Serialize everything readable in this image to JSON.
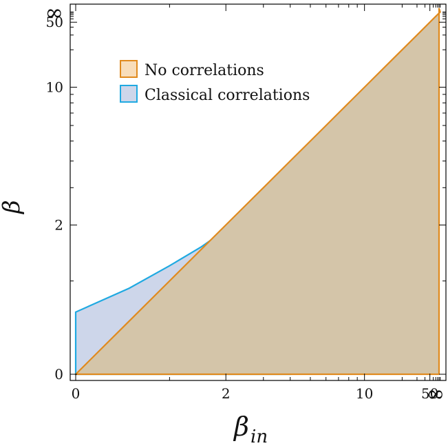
{
  "chart_data": {
    "type": "area",
    "xlabel": "β",
    "xlabel_sub": "in",
    "ylabel": "β",
    "x_ticks": [
      {
        "value": 0,
        "label": "0"
      },
      {
        "value": 2,
        "label": "2"
      },
      {
        "value": 10,
        "label": "10"
      },
      {
        "value": 50,
        "label": "50"
      },
      {
        "value": "inf",
        "label": "∞"
      }
    ],
    "y_ticks": [
      {
        "value": 0,
        "label": "0"
      },
      {
        "value": 2,
        "label": "2"
      },
      {
        "value": 10,
        "label": "10"
      },
      {
        "value": 50,
        "label": "50"
      },
      {
        "value": "inf",
        "label": "∞"
      }
    ],
    "axis_scale": "compressed (t = β/(β+3)), ∞ at end",
    "legend_position": "top-left",
    "series": [
      {
        "name": "No correlations",
        "color": "#E08A1E",
        "fill": "#F8DDBA",
        "x": [
          0,
          0.5,
          1,
          2,
          3,
          4,
          5,
          6,
          8,
          10,
          15,
          20,
          30,
          50,
          70,
          100
        ],
        "y": [
          0,
          0.5,
          1,
          2,
          3,
          4,
          5,
          6,
          8,
          10,
          15,
          20,
          30,
          50,
          70,
          100
        ]
      },
      {
        "name": "Classical correlations",
        "color": "#1FA9E1",
        "fill": "#CDD6EA",
        "x": [
          0,
          0.5,
          1,
          1.5,
          2,
          2.5,
          3,
          3.5,
          4
        ],
        "y": [
          0.6,
          0.9,
          1.23,
          1.55,
          1.9,
          2.27,
          2.65,
          3.05,
          4.0
        ]
      }
    ]
  }
}
